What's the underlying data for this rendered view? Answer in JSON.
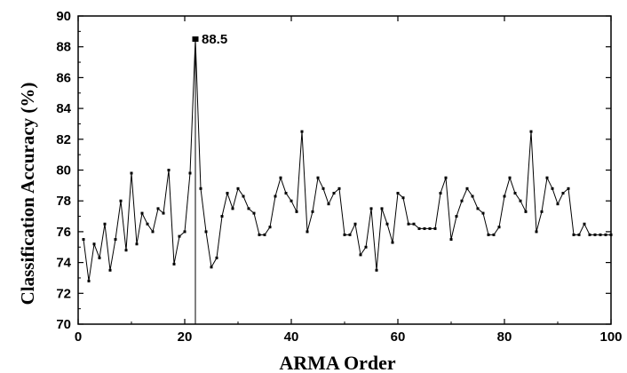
{
  "chart_data": {
    "type": "line",
    "title": "",
    "xlabel": "ARMA Order",
    "ylabel": "Classification Accuracy (%)",
    "xlim": [
      0,
      100
    ],
    "ylim": [
      70,
      90
    ],
    "xticks": [
      "0",
      "20",
      "40",
      "60",
      "80",
      "100"
    ],
    "yticks": [
      "70",
      "72",
      "74",
      "76",
      "78",
      "80",
      "82",
      "84",
      "86",
      "88",
      "90"
    ],
    "grid": false,
    "annotation": {
      "label": "88.5",
      "x": 22,
      "y": 88.5
    },
    "series": [
      {
        "x": [
          1,
          2,
          3,
          4,
          5,
          6,
          7,
          8,
          9,
          10,
          11,
          12,
          13,
          14,
          15,
          16,
          17,
          18,
          19,
          20,
          21,
          22,
          23,
          24,
          25,
          26,
          27,
          28,
          29,
          30,
          31,
          32,
          33,
          34,
          35,
          36,
          37,
          38,
          39,
          40,
          41,
          42,
          43,
          44,
          45,
          46,
          47,
          48,
          49,
          50,
          51,
          52,
          53,
          54,
          55,
          56,
          57,
          58,
          59,
          60,
          61,
          62,
          63,
          64,
          65,
          66,
          67,
          68,
          69,
          70,
          71,
          72,
          73,
          74,
          75,
          76,
          77,
          78,
          79,
          80,
          81,
          82,
          83,
          84,
          85,
          86,
          87,
          88,
          89,
          90,
          91,
          92,
          93,
          94,
          95,
          96,
          97,
          98,
          99,
          100
        ],
        "y": [
          75.5,
          72.8,
          75.2,
          74.3,
          76.5,
          73.5,
          75.5,
          78.0,
          74.8,
          79.8,
          75.2,
          77.2,
          76.5,
          76.0,
          77.5,
          77.2,
          80.0,
          73.9,
          75.7,
          76.0,
          79.8,
          88.5,
          78.8,
          76.0,
          73.7,
          74.3,
          77.0,
          78.5,
          77.5,
          78.8,
          78.3,
          77.5,
          77.2,
          75.8,
          75.8,
          76.3,
          78.3,
          79.5,
          78.5,
          78.0,
          77.3,
          82.5,
          76.0,
          77.3,
          79.5,
          78.8,
          77.8,
          78.5,
          78.8,
          75.8,
          75.8,
          76.5,
          74.5,
          75.0,
          77.5,
          73.5,
          77.5,
          76.5,
          75.3,
          78.5,
          78.2,
          76.5,
          76.5,
          76.2,
          76.2,
          76.2,
          76.2,
          78.5,
          79.5,
          75.5,
          77.0,
          78.0,
          78.8,
          78.3,
          77.5,
          77.2,
          75.8,
          75.8,
          76.3,
          78.3,
          79.5,
          78.5,
          78.0,
          77.3,
          82.5,
          76.0,
          77.3,
          79.5,
          78.8,
          77.8,
          78.5,
          78.8,
          75.8,
          75.8,
          76.5,
          75.8,
          75.8,
          75.8,
          75.8,
          75.8
        ]
      }
    ]
  }
}
